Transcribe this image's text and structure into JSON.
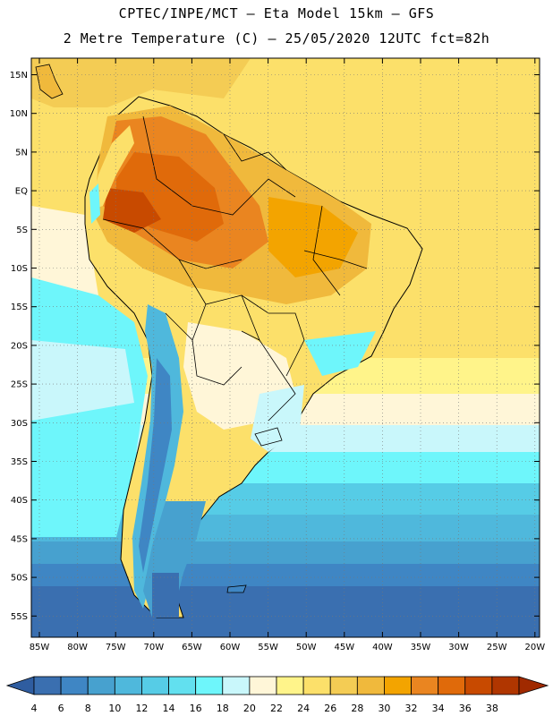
{
  "header": {
    "line1": "CPTEC/INPE/MCT –  Eta Model 15km – GFS",
    "line2": "2 Metre Temperature (C) – 25/05/2020 12UTC fct=82h"
  },
  "map": {
    "lat_labels": [
      "15N",
      "10N",
      "5N",
      "EQ",
      "5S",
      "10S",
      "15S",
      "20S",
      "25S",
      "30S",
      "35S",
      "40S",
      "45S",
      "50S",
      "55S"
    ],
    "lon_labels": [
      "85W",
      "80W",
      "75W",
      "70W",
      "65W",
      "60W",
      "55W",
      "50W",
      "45W",
      "40W",
      "35W",
      "30W",
      "25W",
      "20W"
    ]
  },
  "colorbar": {
    "colors": [
      "#3a6fb0",
      "#3f86c4",
      "#47a1cf",
      "#4fb8dc",
      "#56cce6",
      "#62e0ef",
      "#6ef6fb",
      "#c9f7fb",
      "#fff6d8",
      "#fff48a",
      "#fce06a",
      "#f4cc54",
      "#f0b93c",
      "#f3a400",
      "#ea8520",
      "#e06a0a",
      "#c84a00",
      "#b03600"
    ],
    "labels": [
      "4",
      "6",
      "8",
      "10",
      "12",
      "14",
      "16",
      "18",
      "20",
      "22",
      "24",
      "26",
      "28",
      "30",
      "32",
      "34",
      "36",
      "38"
    ]
  }
}
